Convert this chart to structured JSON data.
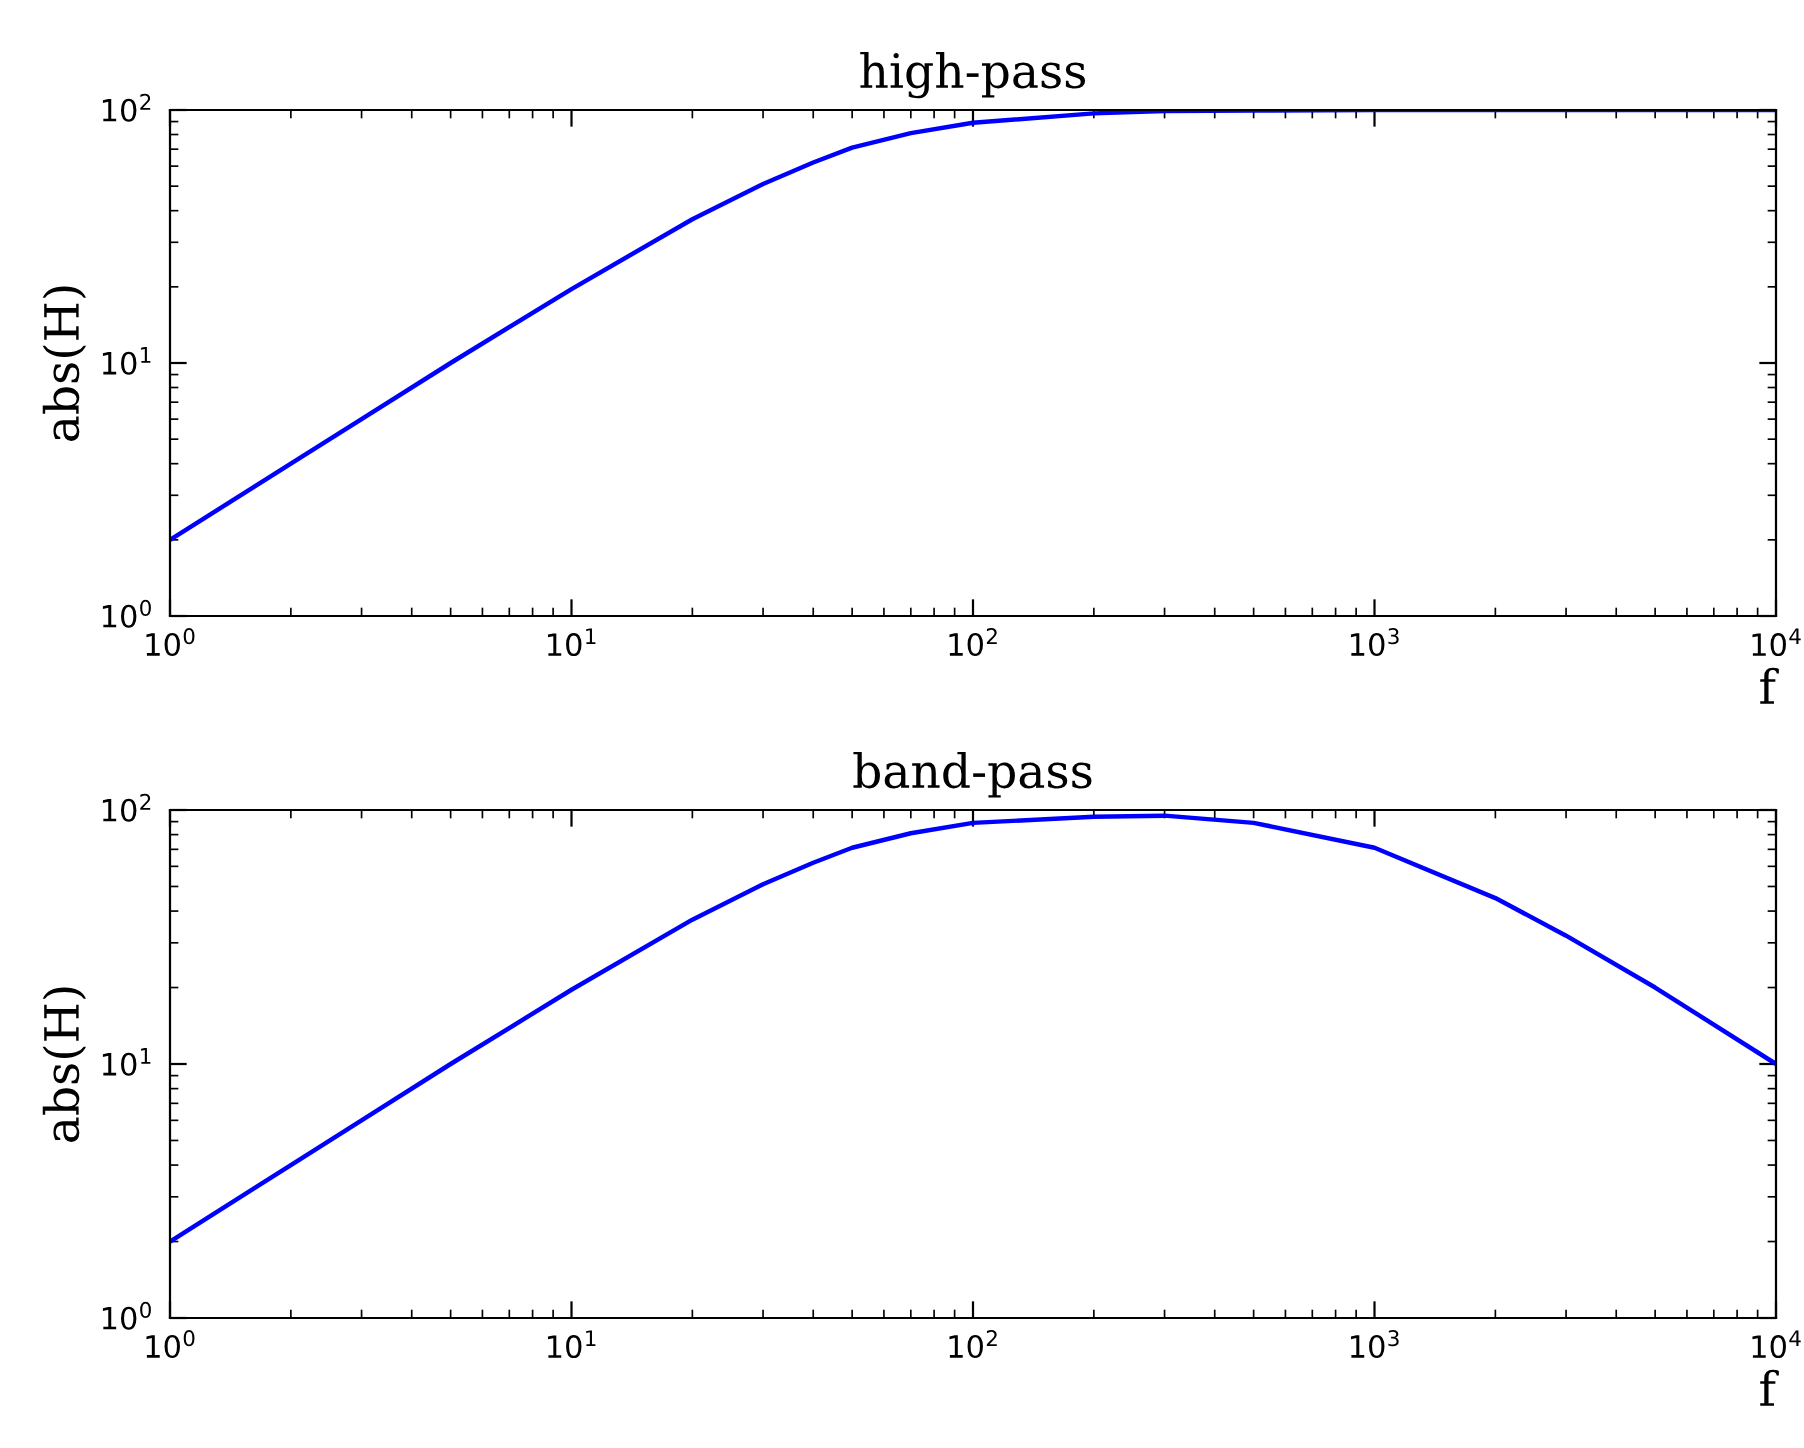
{
  "chart_data": [
    {
      "type": "line",
      "title": "high-pass",
      "xlabel": "f",
      "ylabel": "abs(H)",
      "log": "xy",
      "grid": false,
      "legend": false,
      "marker": "none",
      "line_style": "solid",
      "x": [
        1,
        2,
        3,
        5,
        10,
        20,
        30,
        40,
        50,
        70,
        100,
        200,
        300,
        500,
        1000,
        2000,
        3000,
        5000,
        10000
      ],
      "series": [
        {
          "color": "#0000ff",
          "values": [
            2.0,
            4.0,
            6.0,
            10,
            19.6,
            37,
            51,
            62,
            71,
            81,
            89,
            97,
            99,
            99.5,
            100,
            100,
            100,
            100,
            100
          ]
        }
      ],
      "xlim": [
        1,
        10000
      ],
      "ylim": [
        1,
        100
      ],
      "xticks": [
        {
          "value": 1,
          "label": "10$^{0}$"
        },
        {
          "value": 10,
          "label": "10$^{1}$"
        },
        {
          "value": 100,
          "label": "10$^{2}$"
        },
        {
          "value": 1000,
          "label": "10$^{3}$"
        },
        {
          "value": 10000,
          "label": "10$^{4}$"
        }
      ],
      "yticks": [
        {
          "value": 1,
          "label": "10$^{0}$"
        },
        {
          "value": 10,
          "label": "10$^{1}$"
        },
        {
          "value": 100,
          "label": "10$^{2}$"
        }
      ]
    },
    {
      "type": "line",
      "title": "band-pass",
      "xlabel": "f",
      "ylabel": "abs(H)",
      "log": "xy",
      "grid": false,
      "legend": false,
      "marker": "none",
      "line_style": "solid",
      "x": [
        1,
        2,
        3,
        5,
        10,
        20,
        30,
        40,
        50,
        70,
        100,
        200,
        300,
        500,
        1000,
        2000,
        3000,
        5000,
        10000
      ],
      "series": [
        {
          "color": "#0000ff",
          "values": [
            2.0,
            4.0,
            6.0,
            10,
            19.6,
            37,
            51,
            62,
            71,
            81,
            89,
            94,
            95,
            89,
            71,
            45,
            32,
            20,
            10
          ]
        }
      ],
      "xlim": [
        1,
        10000
      ],
      "ylim": [
        1,
        100
      ],
      "xticks": [
        {
          "value": 1,
          "label": "10$^{0}$"
        },
        {
          "value": 10,
          "label": "10$^{1}$"
        },
        {
          "value": 100,
          "label": "10$^{2}$"
        },
        {
          "value": 1000,
          "label": "10$^{3}$"
        },
        {
          "value": 10000,
          "label": "10$^{4}$"
        }
      ],
      "yticks": [
        {
          "value": 1,
          "label": "10$^{0}$"
        },
        {
          "value": 10,
          "label": "10$^{1}$"
        },
        {
          "value": 100,
          "label": "10$^{2}$"
        }
      ]
    }
  ]
}
